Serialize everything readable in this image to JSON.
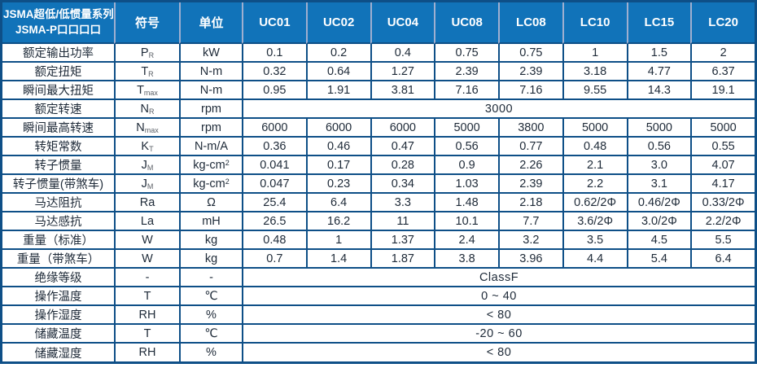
{
  "header": {
    "title_line1": "JSMA超低/低惯量系列",
    "title_line2": "JSMA-P口口口口",
    "symbol_label": "符号",
    "unit_label": "单位",
    "models": [
      "UC01",
      "UC02",
      "UC04",
      "UC08",
      "LC08",
      "LC10",
      "LC15",
      "LC20"
    ]
  },
  "rows": [
    {
      "label": "额定输出功率",
      "symbol": "P",
      "symbol_sub": "R",
      "unit": "kW",
      "values": [
        "0.1",
        "0.2",
        "0.4",
        "0.75",
        "0.75",
        "1",
        "1.5",
        "2"
      ]
    },
    {
      "label": "额定扭矩",
      "symbol": "T",
      "symbol_sub": "R",
      "unit": "N-m",
      "values": [
        "0.32",
        "0.64",
        "1.27",
        "2.39",
        "2.39",
        "3.18",
        "4.77",
        "6.37"
      ]
    },
    {
      "label": "瞬间最大扭矩",
      "symbol": "T",
      "symbol_sub": "max",
      "unit": "N-m",
      "values": [
        "0.95",
        "1.91",
        "3.81",
        "7.16",
        "7.16",
        "9.55",
        "14.3",
        "19.1"
      ]
    },
    {
      "label": "额定转速",
      "symbol": "N",
      "symbol_sub": "R",
      "unit": "rpm",
      "span_value": "3000"
    },
    {
      "label": "瞬间最高转速",
      "symbol": "N",
      "symbol_sub": "max",
      "unit": "rpm",
      "values": [
        "6000",
        "6000",
        "6000",
        "5000",
        "3800",
        "5000",
        "5000",
        "5000"
      ]
    },
    {
      "label": "转矩常数",
      "symbol": "K",
      "symbol_sub": "T",
      "unit": "N-m/A",
      "values": [
        "0.36",
        "0.46",
        "0.47",
        "0.56",
        "0.77",
        "0.48",
        "0.56",
        "0.55"
      ]
    },
    {
      "label": "转子惯量",
      "symbol": "J",
      "symbol_sub": "M",
      "unit": "kg-cm",
      "unit_sup": "2",
      "values": [
        "0.041",
        "0.17",
        "0.28",
        "0.9",
        "2.26",
        "2.1",
        "3.0",
        "4.07"
      ]
    },
    {
      "label": "转子惯量(带煞车)",
      "symbol": "J",
      "symbol_sub": "M",
      "unit": "kg-cm",
      "unit_sup": "2",
      "values": [
        "0.047",
        "0.23",
        "0.34",
        "1.03",
        "2.39",
        "2.2",
        "3.1",
        "4.17"
      ]
    },
    {
      "label": "马达阻抗",
      "symbol": "Ra",
      "unit": "Ω",
      "values": [
        "25.4",
        "6.4",
        "3.3",
        "1.48",
        "2.18",
        "0.62/2Φ",
        "0.46/2Φ",
        "0.33/2Φ"
      ]
    },
    {
      "label": "马达感抗",
      "symbol": "La",
      "unit": "mH",
      "values": [
        "26.5",
        "16.2",
        "11",
        "10.1",
        "7.7",
        "3.6/2Φ",
        "3.0/2Φ",
        "2.2/2Φ"
      ]
    },
    {
      "label": "重量（标准）",
      "symbol": "W",
      "unit": "kg",
      "values": [
        "0.48",
        "1",
        "1.37",
        "2.4",
        "3.2",
        "3.5",
        "4.5",
        "5.5"
      ]
    },
    {
      "label": "重量（带煞车）",
      "symbol": "W",
      "unit": "kg",
      "values": [
        "0.7",
        "1.4",
        "1.87",
        "3.8",
        "3.96",
        "4.4",
        "5.4",
        "6.4"
      ]
    },
    {
      "label": "绝缘等级",
      "symbol": "-",
      "unit": "-",
      "span_value": "ClassF"
    },
    {
      "label": "操作温度",
      "symbol": "T",
      "unit": "℃",
      "span_value": "0 ~ 40"
    },
    {
      "label": "操作湿度",
      "symbol": "RH",
      "unit": "%",
      "span_value": "< 80"
    },
    {
      "label": "储藏温度",
      "symbol": "T",
      "unit": "℃",
      "span_value": "-20 ~ 60"
    },
    {
      "label": "储藏湿度",
      "symbol": "RH",
      "unit": "%",
      "span_value": "< 80"
    }
  ],
  "colors": {
    "header_bg": "#1173B9",
    "border": "#0E4F87",
    "header_divider": "#9FAFD0",
    "header_text": "#FFFFFF",
    "cell_text": "#1E2A38"
  }
}
